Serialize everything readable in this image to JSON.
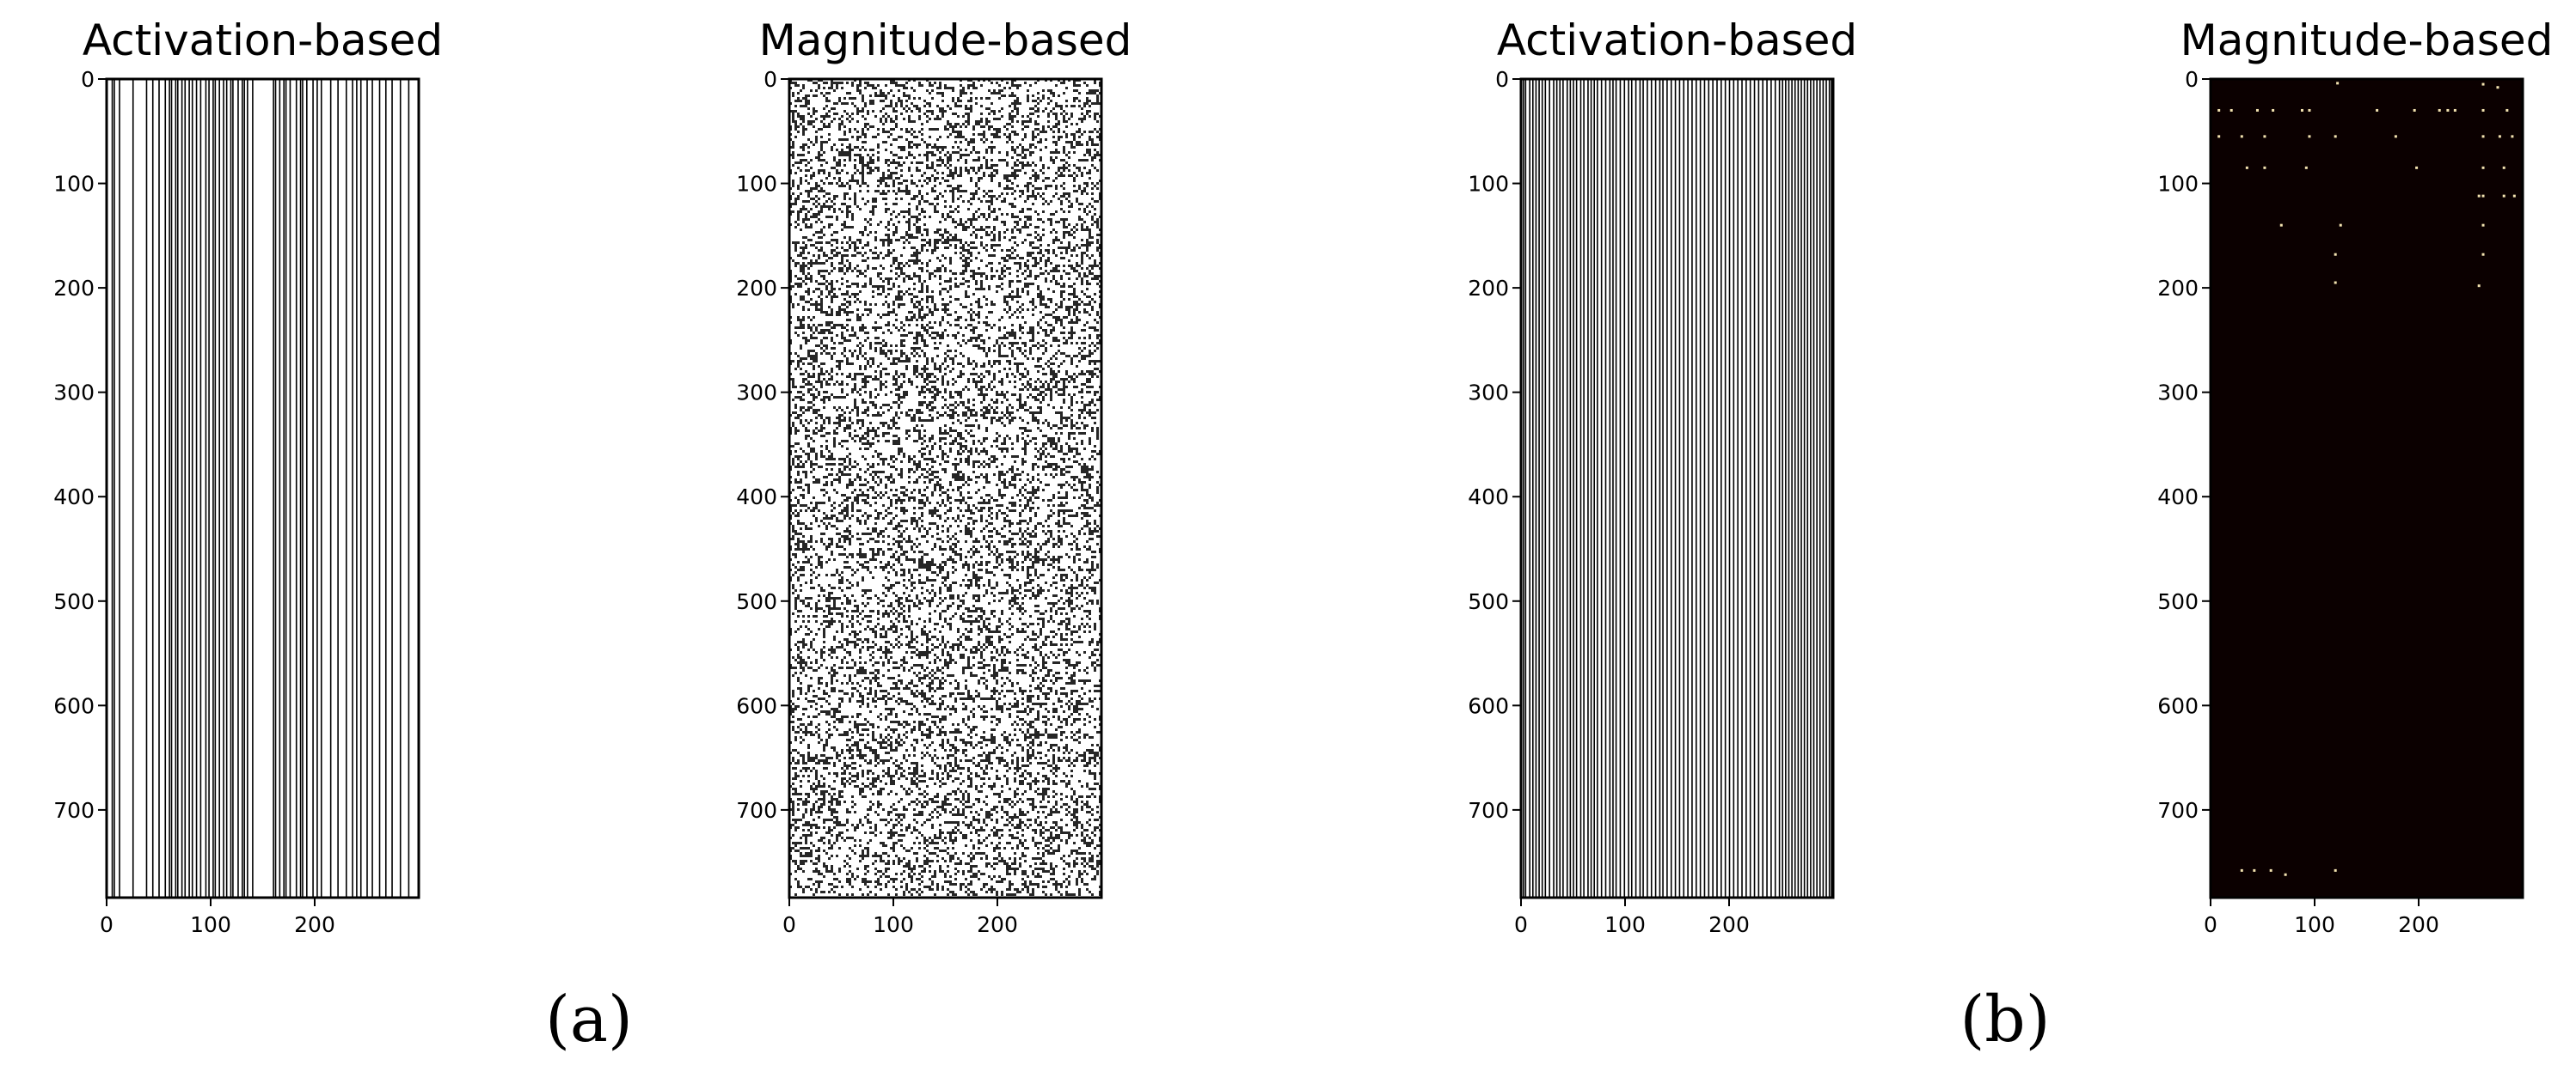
{
  "chart_data": [
    {
      "type": "heatmap",
      "panel": "a",
      "title": "Activation-based",
      "pattern": "column-mask",
      "colormap": "gray",
      "foreground": "#ffffff",
      "line_color": "#000000",
      "xlim": [
        0,
        300
      ],
      "ylim": [
        0,
        784
      ],
      "xticks": [
        0,
        100,
        200
      ],
      "yticks": [
        0,
        100,
        200,
        300,
        400,
        500,
        600,
        700
      ],
      "pruned_columns": [
        5,
        7,
        12,
        25,
        38,
        44,
        50,
        56,
        60,
        62,
        66,
        68,
        72,
        75,
        79,
        82,
        86,
        90,
        95,
        98,
        102,
        104,
        108,
        112,
        115,
        119,
        121,
        126,
        130,
        132,
        135,
        140,
        160,
        162,
        166,
        170,
        172,
        176,
        182,
        186,
        188,
        192,
        198,
        202,
        206,
        215,
        222,
        230,
        236,
        240,
        244,
        250,
        255,
        262,
        268,
        274,
        282,
        290
      ]
    },
    {
      "type": "heatmap",
      "panel": "a",
      "title": "Magnitude-based",
      "pattern": "random-speckle",
      "colormap": "gray",
      "foreground": "#ffffff",
      "point_color": "#000000",
      "density": 0.3,
      "xlim": [
        0,
        300
      ],
      "ylim": [
        0,
        784
      ],
      "xticks": [
        0,
        100,
        200
      ],
      "yticks": [
        0,
        100,
        200,
        300,
        400,
        500,
        600,
        700
      ]
    },
    {
      "type": "heatmap",
      "panel": "b",
      "title": "Activation-based",
      "pattern": "column-mask",
      "colormap": "gray",
      "foreground": "#ffffff",
      "line_color": "#000000",
      "xlim": [
        0,
        300
      ],
      "ylim": [
        0,
        784
      ],
      "xticks": [
        0,
        100,
        200
      ],
      "yticks": [
        0,
        100,
        200,
        300,
        400,
        500,
        600,
        700
      ],
      "pruned_columns": [
        2,
        4,
        8,
        11,
        14,
        17,
        20,
        23,
        27,
        31,
        34,
        37,
        40,
        44,
        47,
        50,
        53,
        57,
        60,
        64,
        67,
        70,
        73,
        77,
        81,
        85,
        88,
        91,
        95,
        99,
        103,
        106,
        110,
        114,
        117,
        121,
        125,
        129,
        133,
        136,
        140,
        144,
        148,
        152,
        156,
        160,
        164,
        168,
        172,
        176,
        180,
        184,
        188,
        192,
        196,
        200,
        204,
        208,
        212,
        216,
        220,
        224,
        228,
        232,
        236,
        240,
        244,
        248,
        251,
        254,
        257,
        260,
        263,
        266,
        269,
        272,
        275,
        278,
        281,
        284,
        287,
        290,
        293,
        296,
        298
      ]
    },
    {
      "type": "heatmap",
      "panel": "b",
      "title": "Magnitude-based",
      "pattern": "sparse-points",
      "colormap": "hot",
      "background": "#0b0000",
      "point_color": "#f3e3b0",
      "xlim": [
        0,
        300
      ],
      "ylim": [
        0,
        784
      ],
      "xticks": [
        0,
        100,
        200
      ],
      "yticks": [
        0,
        100,
        200,
        300,
        400,
        500,
        600,
        700
      ],
      "points": [
        [
          8,
          30
        ],
        [
          20,
          30
        ],
        [
          45,
          30
        ],
        [
          60,
          30
        ],
        [
          88,
          30
        ],
        [
          95,
          30
        ],
        [
          160,
          30
        ],
        [
          196,
          30
        ],
        [
          220,
          30
        ],
        [
          228,
          30
        ],
        [
          235,
          30
        ],
        [
          262,
          30
        ],
        [
          285,
          30
        ],
        [
          8,
          55
        ],
        [
          30,
          55
        ],
        [
          52,
          55
        ],
        [
          95,
          55
        ],
        [
          120,
          55
        ],
        [
          178,
          55
        ],
        [
          262,
          55
        ],
        [
          278,
          55
        ],
        [
          290,
          55
        ],
        [
          35,
          85
        ],
        [
          52,
          85
        ],
        [
          92,
          85
        ],
        [
          198,
          85
        ],
        [
          262,
          85
        ],
        [
          282,
          85
        ],
        [
          258,
          112
        ],
        [
          262,
          112
        ],
        [
          282,
          112
        ],
        [
          292,
          112
        ],
        [
          68,
          140
        ],
        [
          125,
          140
        ],
        [
          262,
          140
        ],
        [
          120,
          168
        ],
        [
          262,
          168
        ],
        [
          120,
          195
        ],
        [
          258,
          198
        ],
        [
          30,
          758
        ],
        [
          42,
          758
        ],
        [
          58,
          758
        ],
        [
          120,
          758
        ],
        [
          72,
          762
        ],
        [
          262,
          5
        ],
        [
          276,
          8
        ],
        [
          122,
          4
        ]
      ]
    }
  ],
  "captions": [
    "(a)",
    "(b)"
  ]
}
